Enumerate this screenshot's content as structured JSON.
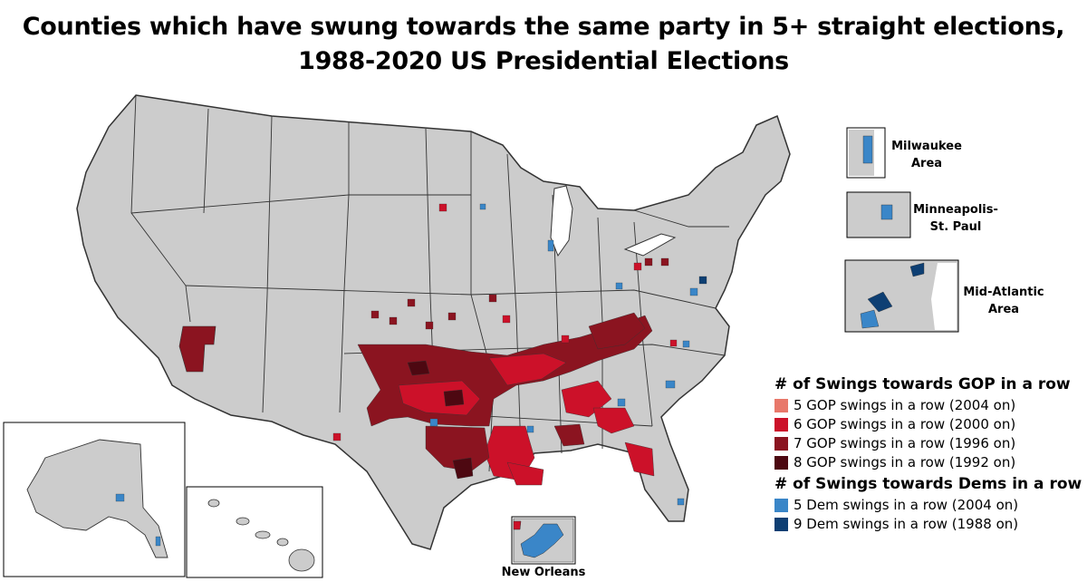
{
  "title_line1": "Counties which have swung towards the same party in 5+ straight elections,",
  "title_line2": "1988-2020 US Presidential Elections",
  "insets": {
    "milwaukee": "Milwaukee\nArea",
    "minneapolis": "Minneapolis-\nSt. Paul",
    "mid_atlantic": "Mid-Atlantic\nArea",
    "new_orleans": "New Orleans"
  },
  "legend": {
    "gop_heading": "# of Swings towards GOP in a row",
    "gop_items": [
      {
        "label": "5 GOP swings in a row (2004 on)",
        "color": "#e8786a"
      },
      {
        "label": "6 GOP swings in a row (2000 on)",
        "color": "#cc1129"
      },
      {
        "label": "7 GOP swings in a row (1996 on)",
        "color": "#8b1420"
      },
      {
        "label": "8 GOP swings in a row (1992 on)",
        "color": "#4d0811"
      }
    ],
    "dem_heading": "# of Swings towards Dems in a row",
    "dem_items": [
      {
        "label": "5 Dem swings in a row (2004 on)",
        "color": "#3a86c8"
      },
      {
        "label": "9 Dem swings in a row (1988 on)",
        "color": "#0e3f73"
      }
    ]
  },
  "colors": {
    "land": "#cccccc",
    "border": "#333333",
    "gop5": "#e8786a",
    "gop6": "#cc1129",
    "gop7": "#8b1420",
    "gop8": "#4d0811",
    "dem5": "#3a86c8",
    "dem9": "#0e3f73"
  }
}
